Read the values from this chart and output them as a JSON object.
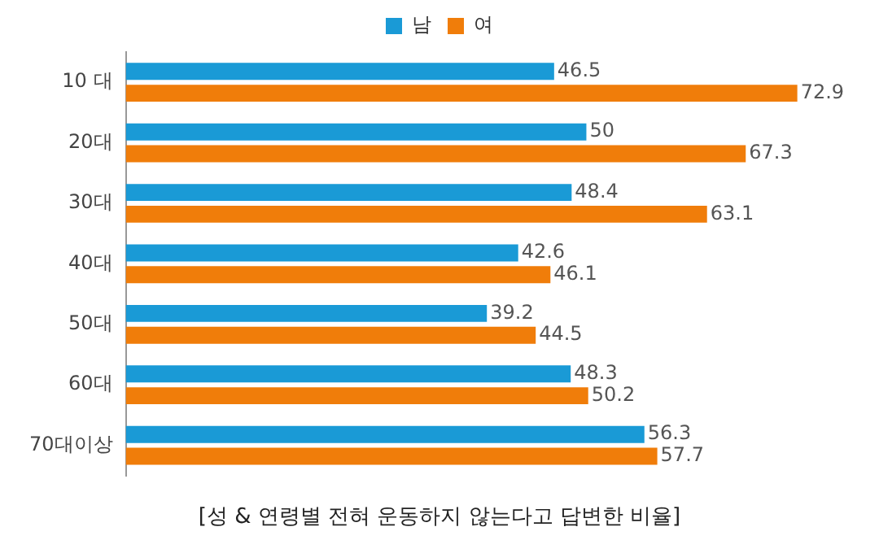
{
  "chart_data": {
    "type": "bar",
    "orientation": "horizontal",
    "title": "[성 & 연령별 전혀 운동하지 않는다고 답변한 비율]",
    "categories": [
      "10 대",
      "20대",
      "30대",
      "40대",
      "50대",
      "60대",
      "70대이상"
    ],
    "series": [
      {
        "name": "남",
        "color": "#1a9ad6",
        "values": [
          46.5,
          50,
          48.4,
          42.6,
          39.2,
          48.3,
          56.3
        ]
      },
      {
        "name": "여",
        "color": "#f07d0a",
        "values": [
          72.9,
          67.3,
          63.1,
          46.1,
          44.5,
          50.2,
          57.7
        ]
      }
    ],
    "tick_labels": "y",
    "grid": false,
    "legend": "top",
    "data_labels": true
  }
}
